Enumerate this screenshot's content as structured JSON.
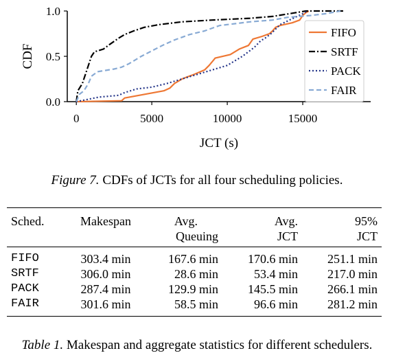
{
  "chart_data": {
    "type": "line",
    "xlabel": "JCT (s)",
    "ylabel": "CDF",
    "xlim": [
      -600,
      19500
    ],
    "ylim": [
      0,
      1.0
    ],
    "x_ticks": [
      0,
      5000,
      10000,
      15000
    ],
    "y_ticks": [
      0.0,
      0.5,
      1.0
    ],
    "x_tick_labels": [
      "0",
      "5000",
      "10000",
      "15000"
    ],
    "y_tick_labels": [
      "0.0",
      "0.5",
      "1.0"
    ],
    "grid": false,
    "legend_position": "right",
    "series": [
      {
        "name": "FIFO",
        "color": "#ee7733",
        "dash": "solid",
        "points": [
          [
            0,
            0
          ],
          [
            3000,
            0.01
          ],
          [
            3200,
            0.04
          ],
          [
            4500,
            0.08
          ],
          [
            5800,
            0.12
          ],
          [
            6200,
            0.15
          ],
          [
            6500,
            0.2
          ],
          [
            7000,
            0.25
          ],
          [
            7300,
            0.27
          ],
          [
            7800,
            0.3
          ],
          [
            8500,
            0.35
          ],
          [
            8800,
            0.4
          ],
          [
            9000,
            0.44
          ],
          [
            9200,
            0.48
          ],
          [
            10200,
            0.52
          ],
          [
            10800,
            0.58
          ],
          [
            11400,
            0.62
          ],
          [
            11700,
            0.69
          ],
          [
            12300,
            0.72
          ],
          [
            12800,
            0.75
          ],
          [
            13000,
            0.78
          ],
          [
            13200,
            0.82
          ],
          [
            13500,
            0.84
          ],
          [
            14300,
            0.87
          ],
          [
            14800,
            0.9
          ],
          [
            15000,
            0.95
          ],
          [
            15200,
            0.98
          ],
          [
            15400,
            1.0
          ]
        ]
      },
      {
        "name": "SRTF",
        "color": "#000000",
        "dash": "dashdot",
        "points": [
          [
            0,
            0
          ],
          [
            100,
            0.12
          ],
          [
            400,
            0.2
          ],
          [
            600,
            0.3
          ],
          [
            800,
            0.4
          ],
          [
            1000,
            0.5
          ],
          [
            1200,
            0.55
          ],
          [
            1800,
            0.58
          ],
          [
            2200,
            0.63
          ],
          [
            2800,
            0.7
          ],
          [
            3200,
            0.74
          ],
          [
            3800,
            0.78
          ],
          [
            4500,
            0.82
          ],
          [
            5500,
            0.85
          ],
          [
            7000,
            0.88
          ],
          [
            9000,
            0.9
          ],
          [
            11500,
            0.92
          ],
          [
            13000,
            0.94
          ],
          [
            14500,
            0.98
          ],
          [
            15200,
            1.0
          ],
          [
            17800,
            1.0
          ]
        ]
      },
      {
        "name": "PACK",
        "color": "#223388",
        "dash": "dotted",
        "points": [
          [
            0,
            0
          ],
          [
            1500,
            0.05
          ],
          [
            2800,
            0.07
          ],
          [
            3200,
            0.1
          ],
          [
            4000,
            0.14
          ],
          [
            5000,
            0.16
          ],
          [
            6000,
            0.2
          ],
          [
            7000,
            0.25
          ],
          [
            8000,
            0.3
          ],
          [
            9000,
            0.35
          ],
          [
            10000,
            0.4
          ],
          [
            11000,
            0.5
          ],
          [
            11800,
            0.6
          ],
          [
            12200,
            0.67
          ],
          [
            12500,
            0.7
          ],
          [
            12900,
            0.75
          ],
          [
            13500,
            0.85
          ],
          [
            14500,
            0.93
          ],
          [
            15000,
            0.97
          ],
          [
            15300,
            1.0
          ]
        ]
      },
      {
        "name": "FAIR",
        "color": "#88aad4",
        "dash": "dashed",
        "points": [
          [
            0,
            0
          ],
          [
            200,
            0.08
          ],
          [
            500,
            0.12
          ],
          [
            800,
            0.2
          ],
          [
            1000,
            0.28
          ],
          [
            1400,
            0.33
          ],
          [
            2500,
            0.36
          ],
          [
            3000,
            0.38
          ],
          [
            3500,
            0.42
          ],
          [
            4300,
            0.5
          ],
          [
            5000,
            0.56
          ],
          [
            5700,
            0.62
          ],
          [
            6500,
            0.68
          ],
          [
            7500,
            0.74
          ],
          [
            8500,
            0.78
          ],
          [
            9500,
            0.84
          ],
          [
            10500,
            0.86
          ],
          [
            11500,
            0.88
          ],
          [
            13000,
            0.9
          ],
          [
            14000,
            0.93
          ],
          [
            15500,
            0.95
          ],
          [
            16500,
            0.97
          ],
          [
            17500,
            1.0
          ]
        ]
      }
    ]
  },
  "figure_caption": {
    "label": "Figure 7.",
    "text": " CDFs of JCTs for all four scheduling policies."
  },
  "table": {
    "headers": [
      {
        "line1": "Sched.",
        "line2": ""
      },
      {
        "line1": "Makespan",
        "line2": ""
      },
      {
        "line1": "Avg.",
        "line2": "Queuing"
      },
      {
        "line1": "Avg.",
        "line2": "JCT"
      },
      {
        "line1": "95%",
        "line2": "JCT"
      }
    ],
    "rows": [
      [
        "FIFO",
        "303.4 min",
        "167.6 min",
        "170.6 min",
        "251.1 min"
      ],
      [
        "SRTF",
        "306.0 min",
        "28.6 min",
        "53.4 min",
        "217.0 min"
      ],
      [
        "PACK",
        "287.4 min",
        "129.9 min",
        "145.5 min",
        "266.1 min"
      ],
      [
        "FAIR",
        "301.6 min",
        "58.5 min",
        "96.6 min",
        "281.2 min"
      ]
    ]
  },
  "table_caption": {
    "label": "Table 1.",
    "text": " Makespan and aggregate statistics for different schedulers."
  }
}
